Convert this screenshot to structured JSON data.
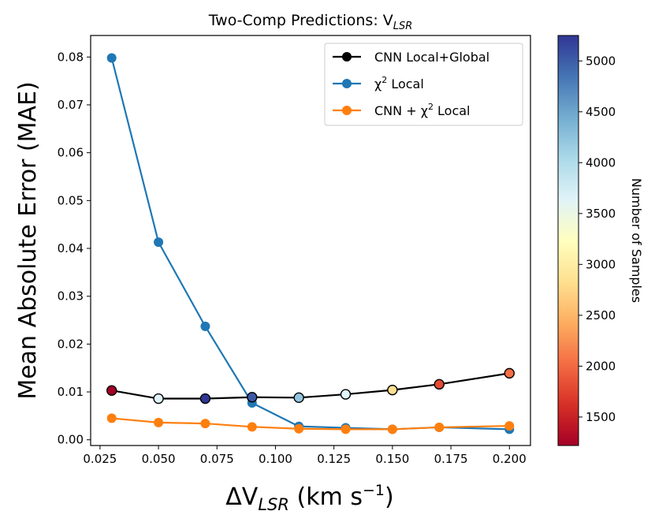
{
  "chart_data": {
    "type": "line",
    "title": "Two-Comp Predictions: V",
    "title_subscript": "LSR",
    "xlabel": "ΔV",
    "xlabel_subscript": "LSR",
    "xlabel_units": " (km s",
    "xlabel_units_sup": "−1",
    "xlabel_units_close": ")",
    "ylabel": "Mean Absolute Error (MAE)",
    "xlim": [
      0.021,
      0.209
    ],
    "ylim": [
      -0.0012,
      0.0845
    ],
    "xticks": [
      0.025,
      0.05,
      0.075,
      0.1,
      0.125,
      0.15,
      0.175,
      0.2
    ],
    "xtick_labels": [
      "0.025",
      "0.050",
      "0.075",
      "0.100",
      "0.125",
      "0.150",
      "0.175",
      "0.200"
    ],
    "yticks": [
      0.0,
      0.01,
      0.02,
      0.03,
      0.04,
      0.05,
      0.06,
      0.07,
      0.08
    ],
    "ytick_labels": [
      "0.00",
      "0.01",
      "0.02",
      "0.03",
      "0.04",
      "0.05",
      "0.06",
      "0.07",
      "0.08"
    ],
    "x": [
      0.03,
      0.05,
      0.07,
      0.09,
      0.11,
      0.13,
      0.15,
      0.17,
      0.2
    ],
    "series": [
      {
        "name": "χ² Local",
        "legend_main": "χ",
        "legend_sup": "2",
        "legend_rest": " Local",
        "color": "#1f77b4",
        "values": [
          0.0798,
          0.0413,
          0.0237,
          0.0077,
          0.0028,
          0.0025,
          0.0022,
          0.0026,
          0.0022
        ]
      },
      {
        "name": "CNN + χ² Local",
        "legend_main": "CNN + χ",
        "legend_sup": "2",
        "legend_rest": " Local",
        "color": "#ff7f0e",
        "values": [
          0.0045,
          0.0036,
          0.0034,
          0.0027,
          0.0023,
          0.0022,
          0.0022,
          0.0026,
          0.0029
        ]
      },
      {
        "name": "CNN Local+Global",
        "legend_main": "CNN Local+Global",
        "legend_sup": "",
        "legend_rest": "",
        "color": "#000000",
        "values": [
          0.0103,
          0.0086,
          0.0086,
          0.0089,
          0.0088,
          0.0095,
          0.0104,
          0.0116,
          0.0139
        ],
        "marker_colors": [
          "#a50026",
          "#e0f3f8",
          "#313695",
          "#3c59a6",
          "#92c5de",
          "#e0f3f8",
          "#fee090",
          "#e34a33",
          "#f46d43"
        ]
      }
    ],
    "legend_order": [
      2,
      0,
      1
    ],
    "legend_position": "top-right",
    "colorbar": {
      "label": "Number of Samples",
      "range": [
        1220,
        5250
      ],
      "ticks": [
        1500,
        2000,
        2500,
        3000,
        3500,
        4000,
        4500,
        5000
      ],
      "tick_labels": [
        "1500",
        "2000",
        "2500",
        "3000",
        "3500",
        "4000",
        "4500",
        "5000"
      ],
      "colormap": "RdYlBu",
      "stops": [
        "#a50026",
        "#d73027",
        "#f46d43",
        "#fdae61",
        "#fee090",
        "#ffffbf",
        "#e0f3f8",
        "#abd9e9",
        "#74add1",
        "#4575b4",
        "#313695"
      ]
    }
  }
}
